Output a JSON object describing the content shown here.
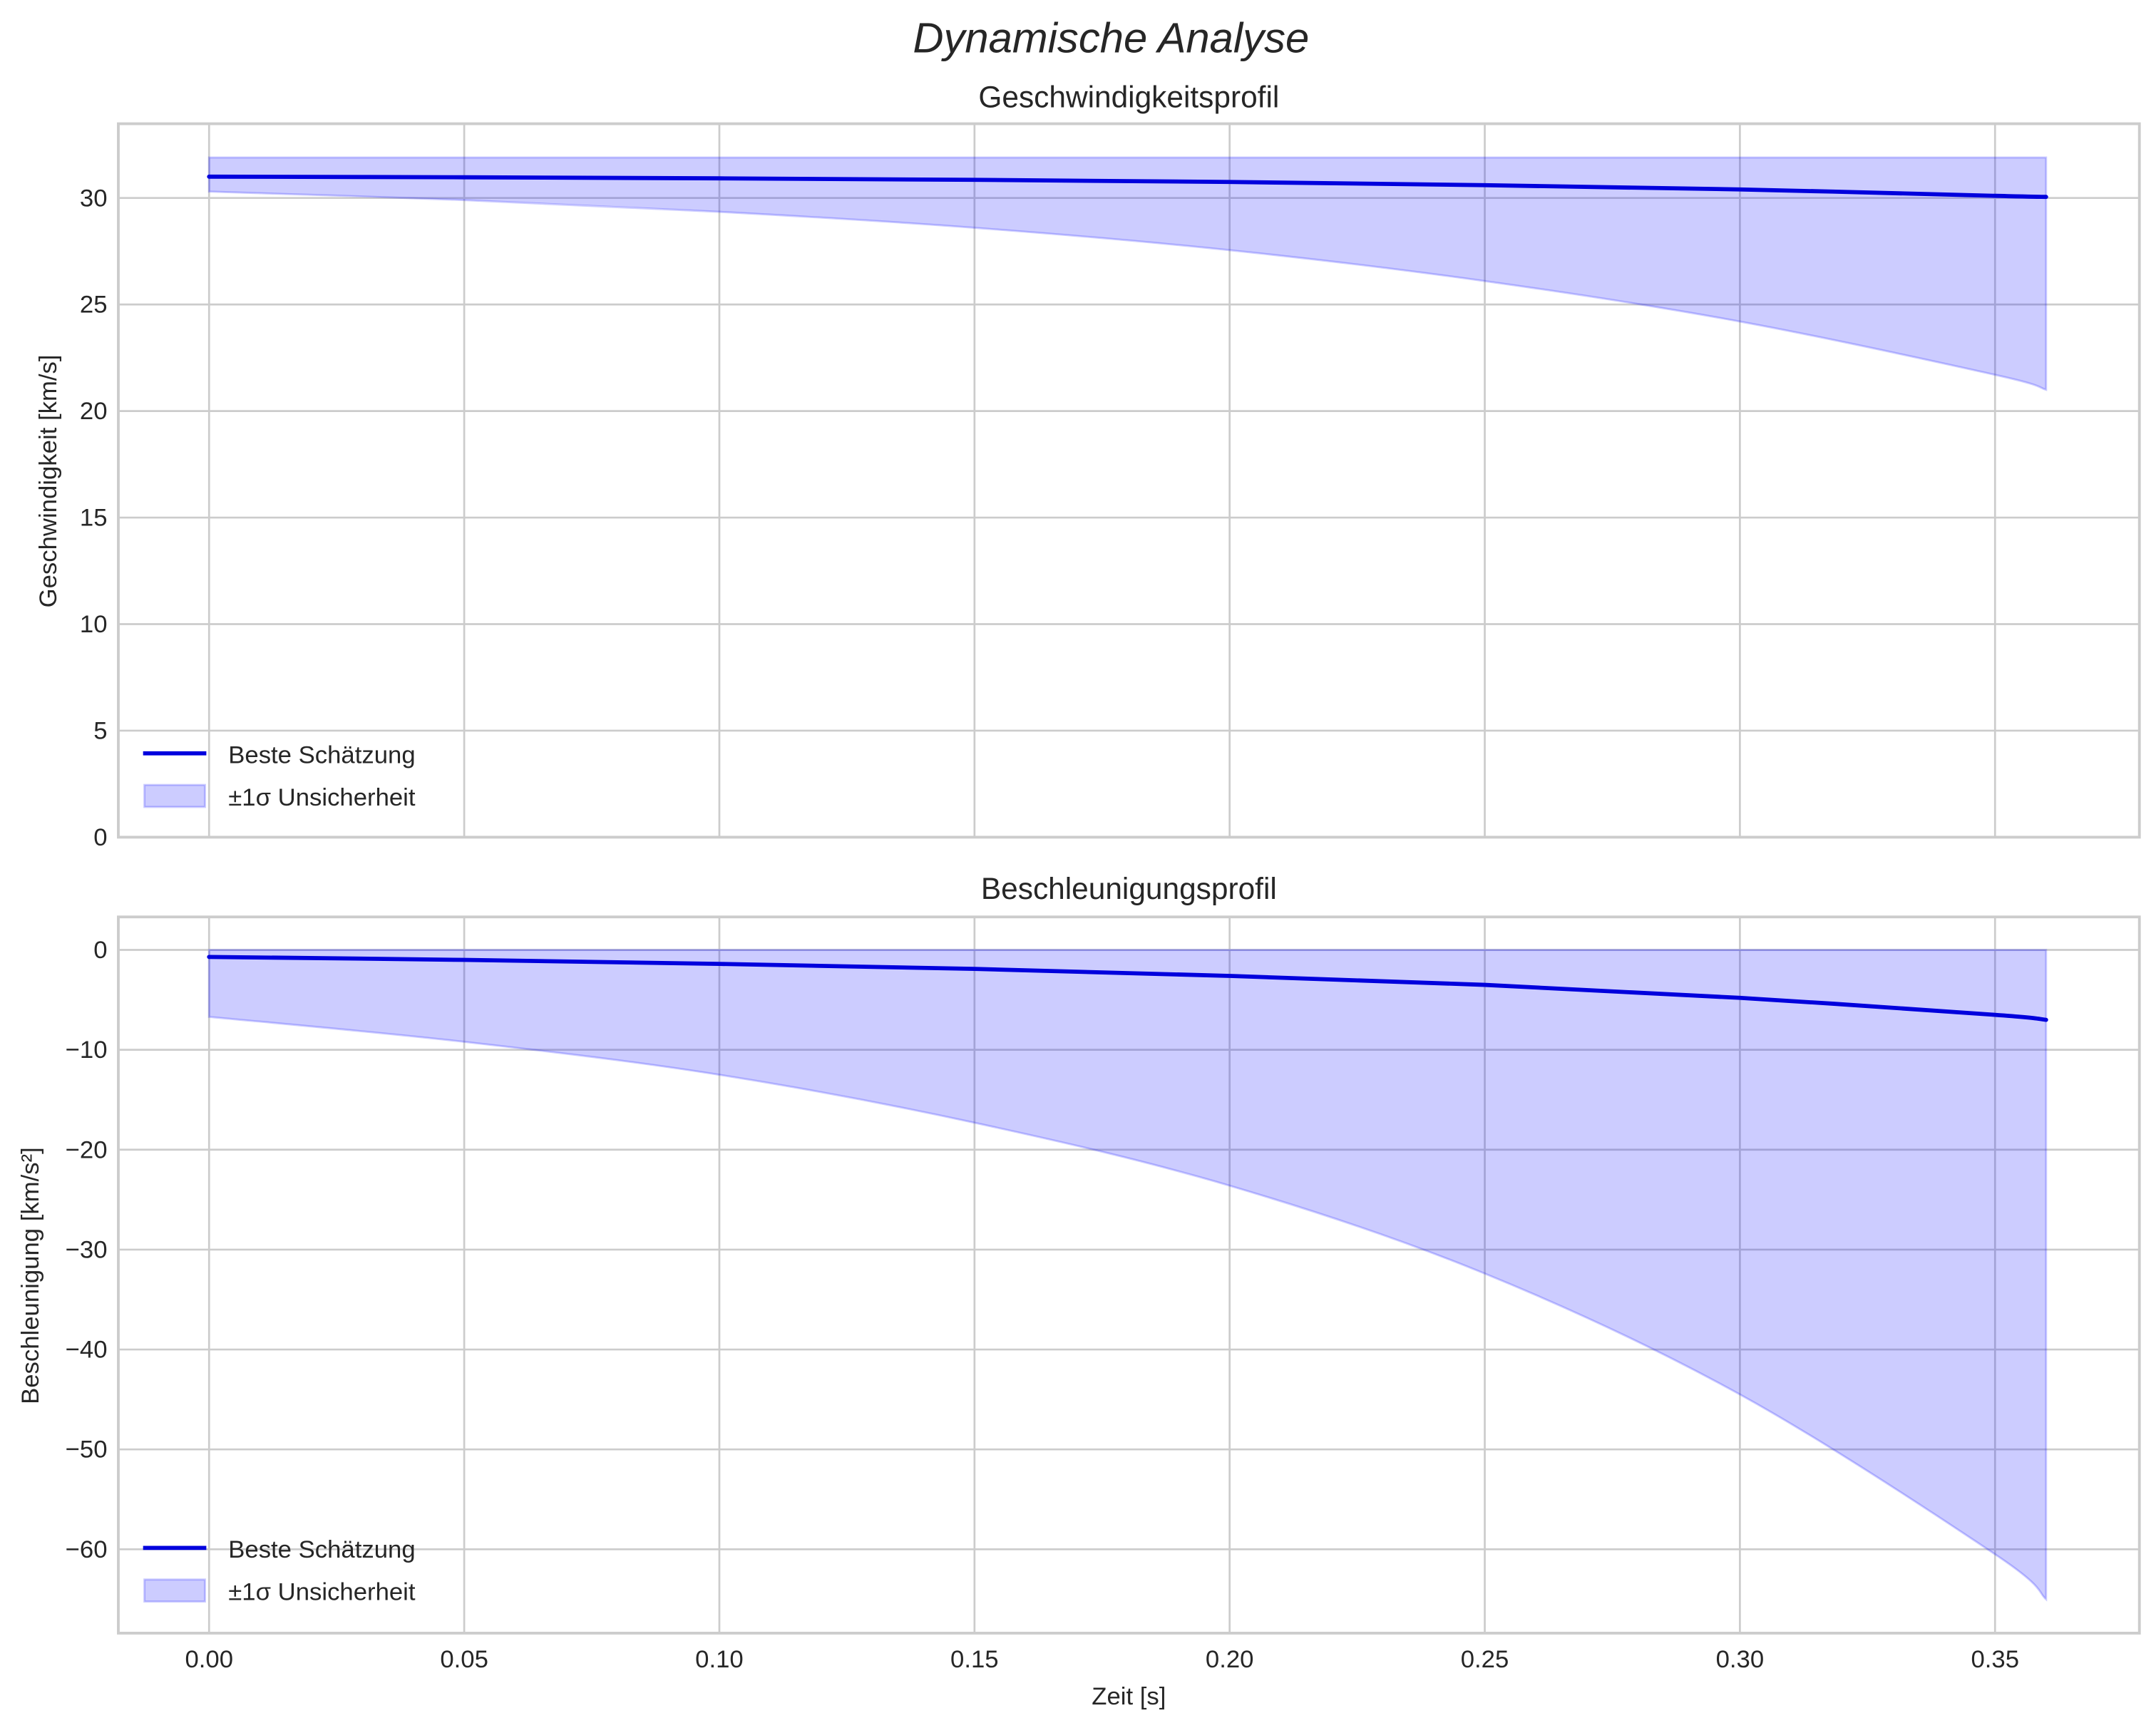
{
  "figure": {
    "title": "Dynamische Analyse"
  },
  "chart_data": [
    {
      "type": "line",
      "title": "Geschwindigkeitsprofil",
      "xlabel": "",
      "ylabel": "Geschwindigkeit [km/s]",
      "xlim": [
        -0.018,
        0.378
      ],
      "ylim": [
        0,
        33.5
      ],
      "xticks": [
        "0.00",
        "0.05",
        "0.10",
        "0.15",
        "0.20",
        "0.25",
        "0.30",
        "0.35"
      ],
      "yticks": [
        "0",
        "5",
        "10",
        "15",
        "20",
        "25",
        "30"
      ],
      "grid": true,
      "legend_position": "lower left",
      "x": [
        0.0,
        0.05,
        0.1,
        0.15,
        0.2,
        0.25,
        0.3,
        0.35,
        0.36
      ],
      "series": [
        {
          "name": "Beste Schätzung",
          "values": [
            31.0,
            30.97,
            30.92,
            30.85,
            30.75,
            30.6,
            30.4,
            30.1,
            30.05
          ],
          "color": "#0000dd"
        },
        {
          "name": "±1σ Unsicherheit (obere Grenze)",
          "values": [
            31.9,
            31.9,
            31.9,
            31.9,
            31.9,
            31.9,
            31.9,
            31.9,
            31.9
          ],
          "color": "#ccccff"
        },
        {
          "name": "±1σ Unsicherheit (untere Grenze)",
          "values": [
            30.3,
            29.9,
            29.35,
            28.6,
            27.55,
            26.1,
            24.2,
            21.7,
            21.0
          ],
          "color": "#ccccff"
        }
      ]
    },
    {
      "type": "line",
      "title": "Beschleunigungsprofil",
      "xlabel": "Zeit [s]",
      "ylabel": "Beschleunigung [km/s²]",
      "xlim": [
        -0.018,
        0.378
      ],
      "ylim": [
        -68.5,
        3.2
      ],
      "xticks": [
        "0.00",
        "0.05",
        "0.10",
        "0.15",
        "0.20",
        "0.25",
        "0.30",
        "0.35"
      ],
      "yticks": [
        "0",
        "−10",
        "−20",
        "−30",
        "−40",
        "−50",
        "−60"
      ],
      "grid": true,
      "legend_position": "lower left",
      "x": [
        0.0,
        0.05,
        0.1,
        0.15,
        0.2,
        0.25,
        0.3,
        0.35,
        0.36
      ],
      "series": [
        {
          "name": "Beste Schätzung",
          "values": [
            -0.7,
            -1.0,
            -1.4,
            -1.9,
            -2.6,
            -3.5,
            -4.8,
            -6.5,
            -7.0
          ],
          "color": "#0000dd"
        },
        {
          "name": "±1σ Unsicherheit (obere Grenze)",
          "values": [
            0,
            0,
            0,
            0,
            0,
            0,
            0,
            0,
            0
          ],
          "color": "#ccccff"
        },
        {
          "name": "±1σ Unsicherheit (untere Grenze)",
          "values": [
            -6.7,
            -9.2,
            -12.5,
            -17.3,
            -23.6,
            -32.4,
            -44.5,
            -60.5,
            -65.0
          ],
          "color": "#ccccff"
        }
      ]
    }
  ],
  "legend": {
    "line_label": "Beste Schätzung",
    "band_label": "±1σ Unsicherheit"
  }
}
